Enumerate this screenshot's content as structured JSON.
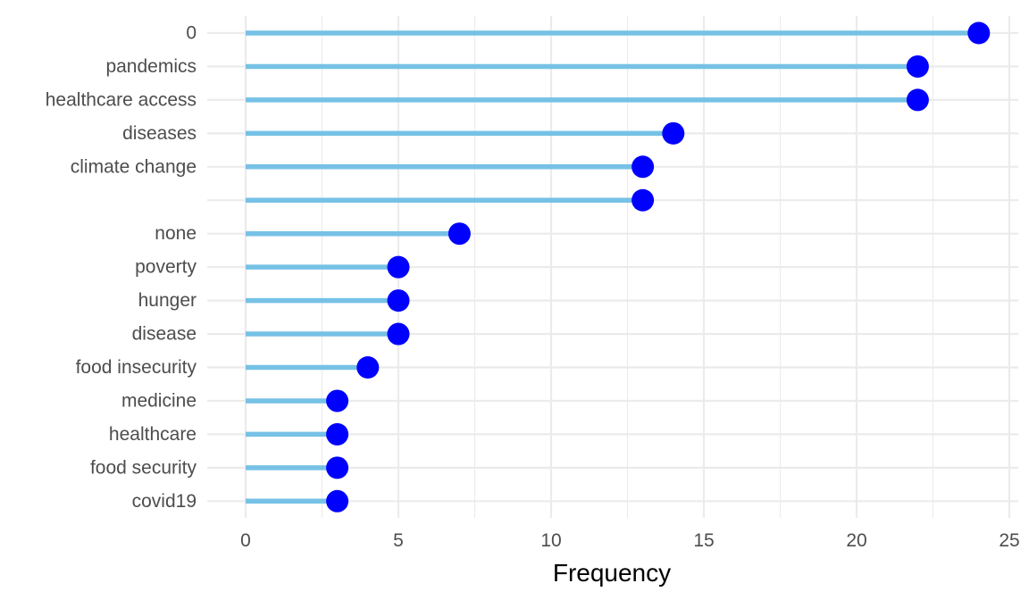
{
  "chart_data": {
    "type": "lollipop",
    "orientation": "horizontal",
    "categories": [
      "0",
      "pandemics",
      "healthcare access",
      "diseases",
      "climate change",
      "",
      "none",
      "poverty",
      "hunger",
      "disease",
      "food insecurity",
      "medicine",
      "healthcare",
      "food security",
      "covid19"
    ],
    "values": [
      24,
      22,
      22,
      14,
      13,
      13,
      7,
      5,
      5,
      5,
      4,
      3,
      3,
      3,
      3
    ],
    "xlabel": "Frequency",
    "ylabel": "",
    "xlim": [
      0,
      25
    ],
    "x_ticks": [
      0,
      5,
      10,
      15,
      20,
      25
    ],
    "x_tick_labels": [
      "0",
      "5",
      "10",
      "15",
      "20",
      "25"
    ],
    "grid": true,
    "colors": {
      "stem": "#76c1e6",
      "point": "#0000ff",
      "grid": "#ebebeb",
      "tick_text": "#4d4d4d",
      "axis_title": "#000000"
    }
  }
}
